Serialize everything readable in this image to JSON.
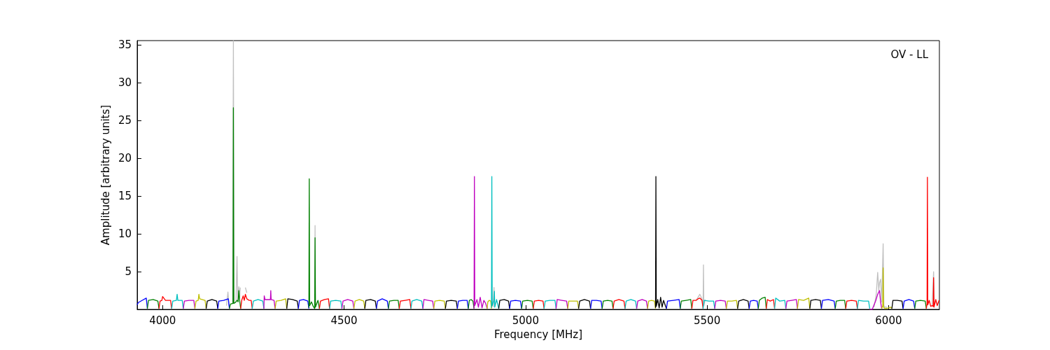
{
  "chart_data": {
    "type": "line",
    "xlabel": "Frequency [MHz]",
    "ylabel": "Amplitude [arbitrary units]",
    "annotations": [
      "OV - LL"
    ],
    "xlim": [
      3930,
      6140
    ],
    "xticks": [
      4000,
      4500,
      5000,
      5500,
      6000
    ],
    "ylim": [
      0,
      35.6
    ],
    "yticks": [
      5,
      10,
      15,
      20,
      25,
      30,
      35
    ],
    "marker": "none",
    "line_style": "solid",
    "series": [
      {
        "color": "#c0c0c0",
        "x": [
          4176,
          4180,
          4183,
          4186,
          4193,
          4195,
          4197,
          4202,
          4205,
          4207,
          4210,
          4212,
          4214,
          4222,
          4228,
          4232,
          4235,
          4410,
          4419,
          4420,
          4421,
          4430,
          4910,
          4913,
          4914,
          4916,
          4920,
          5470,
          5480,
          5485,
          5489,
          5490,
          5491,
          5495,
          5500,
          5960,
          5966,
          5970,
          5973,
          5975,
          5978,
          5981,
          5985,
          5987,
          5990,
          5995,
          6000,
          6110,
          6120,
          6124,
          6126
        ],
        "values": [
          0.5,
          2.3,
          0.5,
          null,
          0.8,
          35.6,
          0.8,
          1.0,
          7.0,
          1.2,
          3.0,
          1.4,
          2.9,
          null,
          2.9,
          2.2,
          null,
          null,
          0.3,
          11.1,
          0.3,
          null,
          0.3,
          2.9,
          0.3,
          null,
          null,
          1.2,
          2.0,
          1.5,
          0.5,
          5.9,
          0.5,
          1.3,
          null,
          0.3,
          2.0,
          4.9,
          2.5,
          3.5,
          4.0,
          1.0,
          8.7,
          0.5,
          0.3,
          0.3,
          null,
          null,
          0.5,
          5.0,
          0.5
        ]
      },
      {
        "color": "#0000ff",
        "x": [
          3930,
          3933,
          3944,
          3955,
          3958
        ],
        "values": [
          0.6,
          0.9,
          1.2,
          1.5,
          0.1
        ]
      },
      {
        "color": "#008000",
        "x": [
          3958,
          3961,
          3974,
          3987,
          3990
        ],
        "values": [
          0.1,
          1.2,
          1.3,
          1.1,
          0.1
        ]
      },
      {
        "color": "#ff0000",
        "x": [
          3990,
          3993,
          3998,
          4000,
          4008,
          4022,
          4025
        ],
        "values": [
          0.1,
          1.1,
          1.2,
          1.7,
          1.2,
          1.2,
          0.1
        ]
      },
      {
        "color": "#00bfbf",
        "x": [
          4025,
          4028,
          4038,
          4040,
          4042,
          4054,
          4057
        ],
        "values": [
          0.1,
          1.1,
          1.2,
          2.0,
          1.2,
          1.2,
          0.1
        ]
      },
      {
        "color": "#bf00bf",
        "x": [
          4057,
          4060,
          4073,
          4086,
          4089
        ],
        "values": [
          0.1,
          1.1,
          1.2,
          1.2,
          0.1
        ]
      },
      {
        "color": "#bfbf00",
        "x": [
          4089,
          4092,
          4098,
          4100,
          4102,
          4117,
          4120
        ],
        "values": [
          0.1,
          1.1,
          1.2,
          2.0,
          1.4,
          1.2,
          0.1
        ]
      },
      {
        "color": "#000000",
        "x": [
          4120,
          4123,
          4136,
          4149,
          4152
        ],
        "values": [
          0.1,
          1.1,
          1.3,
          1.1,
          0.1
        ]
      },
      {
        "color": "#0000ff",
        "x": [
          4152,
          4155,
          4168,
          4181,
          4184
        ],
        "values": [
          0.1,
          1.1,
          1.2,
          1.4,
          0.1
        ]
      },
      {
        "color": "#008000",
        "x": [
          4184,
          4187,
          4194,
          4195,
          4196,
          4200,
          4205,
          4208,
          4210,
          4212,
          4215
        ],
        "values": [
          0.1,
          0.7,
          0.8,
          26.7,
          0.8,
          0.9,
          1.2,
          1.0,
          2.5,
          1.3,
          0.1
        ]
      },
      {
        "color": "#ff0000",
        "x": [
          4215,
          4218,
          4222,
          4225,
          4228,
          4232,
          4238,
          4244,
          4247
        ],
        "values": [
          0.1,
          1.2,
          1.8,
          1.2,
          2.0,
          1.4,
          1.2,
          1.2,
          0.1
        ]
      },
      {
        "color": "#00bfbf",
        "x": [
          4247,
          4250,
          4263,
          4276,
          4279
        ],
        "values": [
          0.1,
          1.1,
          1.3,
          1.1,
          0.1
        ]
      },
      {
        "color": "#bf00bf",
        "x": [
          4279,
          4280,
          4282,
          4290,
          4297,
          4298,
          4299,
          4307,
          4310
        ],
        "values": [
          0.1,
          1.8,
          1.3,
          1.3,
          1.3,
          2.5,
          1.3,
          1.2,
          0.1
        ]
      },
      {
        "color": "#bfbf00",
        "x": [
          4310,
          4313,
          4326,
          4339,
          4342
        ],
        "values": [
          0.1,
          1.1,
          1.2,
          1.4,
          0.1
        ]
      },
      {
        "color": "#000000",
        "x": [
          4342,
          4345,
          4358,
          4371,
          4374
        ],
        "values": [
          0.1,
          1.4,
          1.3,
          1.1,
          0.1
        ]
      },
      {
        "color": "#0000ff",
        "x": [
          4374,
          4377,
          4388,
          4400,
          4403
        ],
        "values": [
          0.1,
          1.2,
          1.3,
          1.1,
          0.1
        ]
      },
      {
        "color": "#008000",
        "x": [
          4403,
          4404,
          4405,
          4410,
          4415,
          4419,
          4420,
          4421,
          4428,
          4432
        ],
        "values": [
          0.2,
          17.3,
          0.5,
          1.0,
          0.4,
          0.1,
          9.5,
          0.3,
          1.2,
          0.1
        ]
      },
      {
        "color": "#ff0000",
        "x": [
          4432,
          4435,
          4446,
          4457,
          4460
        ],
        "values": [
          0.1,
          1.1,
          1.3,
          1.4,
          0.1
        ]
      },
      {
        "color": "#00bfbf",
        "x": [
          4460,
          4463,
          4477,
          4491,
          4494
        ],
        "values": [
          0.1,
          1.1,
          1.2,
          1.1,
          0.1
        ]
      },
      {
        "color": "#bf00bf",
        "x": [
          4494,
          4497,
          4510,
          4524,
          4527
        ],
        "values": [
          0.1,
          1.1,
          1.3,
          1.1,
          0.1
        ]
      },
      {
        "color": "#bfbf00",
        "x": [
          4527,
          4530,
          4542,
          4554,
          4557
        ],
        "values": [
          0.1,
          1.1,
          1.3,
          1.1,
          0.1
        ]
      },
      {
        "color": "#000000",
        "x": [
          4557,
          4560,
          4573,
          4586,
          4589
        ],
        "values": [
          0.1,
          1.2,
          1.3,
          1.1,
          0.1
        ]
      },
      {
        "color": "#0000ff",
        "x": [
          4589,
          4592,
          4605,
          4619,
          4622
        ],
        "values": [
          0.1,
          1.1,
          1.4,
          1.1,
          0.1
        ]
      },
      {
        "color": "#008000",
        "x": [
          4622,
          4625,
          4637,
          4649,
          4652
        ],
        "values": [
          0.1,
          1.1,
          1.2,
          1.2,
          0.1
        ]
      },
      {
        "color": "#ff0000",
        "x": [
          4652,
          4655,
          4668,
          4681,
          4684
        ],
        "values": [
          0.1,
          1.1,
          1.2,
          1.3,
          0.1
        ]
      },
      {
        "color": "#00bfbf",
        "x": [
          4684,
          4687,
          4700,
          4714,
          4717
        ],
        "values": [
          0.1,
          1.1,
          1.3,
          1.1,
          0.1
        ]
      },
      {
        "color": "#bf00bf",
        "x": [
          4717,
          4720,
          4732,
          4744,
          4747
        ],
        "values": [
          0.1,
          1.3,
          1.2,
          1.1,
          0.1
        ]
      },
      {
        "color": "#bfbf00",
        "x": [
          4747,
          4750,
          4763,
          4776,
          4779
        ],
        "values": [
          0.1,
          1.1,
          1.2,
          1.1,
          0.1
        ]
      },
      {
        "color": "#000000",
        "x": [
          4779,
          4782,
          4795,
          4809,
          4812
        ],
        "values": [
          0.1,
          1.1,
          1.2,
          1.1,
          0.1
        ]
      },
      {
        "color": "#0000ff",
        "x": [
          4812,
          4815,
          4827,
          4839,
          4842
        ],
        "values": [
          0.1,
          1.1,
          1.2,
          1.2,
          0.1
        ]
      },
      {
        "color": "#008000",
        "x": [
          4842,
          4845,
          4850,
          4855,
          4858
        ],
        "values": [
          0.1,
          1.2,
          1.3,
          1.1,
          0.1
        ]
      },
      {
        "color": "#bf00bf",
        "x": [
          4858,
          4859,
          4860,
          4866,
          4870,
          4875,
          4880,
          4885,
          4890,
          4894
        ],
        "values": [
          0.1,
          17.6,
          0.5,
          1.3,
          0.3,
          1.6,
          0.2,
          1.2,
          0.8,
          0.1
        ]
      },
      {
        "color": "#bfbf00",
        "x": [
          4894,
          4896,
          4900,
          4904,
          4906
        ],
        "values": [
          0.1,
          1.0,
          1.2,
          1.1,
          0.1
        ]
      },
      {
        "color": "#00bfbf",
        "x": [
          4906,
          4907,
          4908,
          4913,
          4914,
          4915,
          4920,
          4926
        ],
        "values": [
          0.2,
          17.6,
          0.5,
          1.2,
          2.4,
          0.3,
          1.3,
          0.1
        ]
      },
      {
        "color": "#000000",
        "x": [
          4926,
          4929,
          4941,
          4953,
          4956
        ],
        "values": [
          0.1,
          1.2,
          1.3,
          1.1,
          0.1
        ]
      },
      {
        "color": "#0000ff",
        "x": [
          4956,
          4959,
          4972,
          4986,
          4989
        ],
        "values": [
          0.1,
          1.1,
          1.2,
          1.1,
          0.1
        ]
      },
      {
        "color": "#008000",
        "x": [
          4989,
          4992,
          5005,
          5018,
          5021
        ],
        "values": [
          0.1,
          1.1,
          1.2,
          1.1,
          0.1
        ]
      },
      {
        "color": "#ff0000",
        "x": [
          5021,
          5024,
          5036,
          5048,
          5051
        ],
        "values": [
          0.1,
          1.1,
          1.2,
          1.1,
          0.1
        ]
      },
      {
        "color": "#00bfbf",
        "x": [
          5051,
          5054,
          5067,
          5081,
          5084
        ],
        "values": [
          0.1,
          1.1,
          1.2,
          1.2,
          0.1
        ]
      },
      {
        "color": "#bf00bf",
        "x": [
          5084,
          5087,
          5100,
          5113,
          5116
        ],
        "values": [
          0.1,
          1.3,
          1.2,
          1.1,
          0.1
        ]
      },
      {
        "color": "#bfbf00",
        "x": [
          5116,
          5119,
          5131,
          5143,
          5146
        ],
        "values": [
          0.1,
          1.1,
          1.1,
          1.1,
          0.1
        ]
      },
      {
        "color": "#000000",
        "x": [
          5146,
          5149,
          5162,
          5176,
          5179
        ],
        "values": [
          0.1,
          1.1,
          1.3,
          1.1,
          0.1
        ]
      },
      {
        "color": "#0000ff",
        "x": [
          5179,
          5182,
          5195,
          5208,
          5211
        ],
        "values": [
          0.1,
          1.2,
          1.2,
          1.1,
          0.1
        ]
      },
      {
        "color": "#008000",
        "x": [
          5211,
          5214,
          5226,
          5238,
          5241
        ],
        "values": [
          0.1,
          1.1,
          1.2,
          1.1,
          0.1
        ]
      },
      {
        "color": "#ff0000",
        "x": [
          5241,
          5244,
          5257,
          5271,
          5274
        ],
        "values": [
          0.1,
          1.1,
          1.3,
          1.1,
          0.1
        ]
      },
      {
        "color": "#00bfbf",
        "x": [
          5274,
          5277,
          5290,
          5303,
          5306
        ],
        "values": [
          0.1,
          1.1,
          1.3,
          1.1,
          0.1
        ]
      },
      {
        "color": "#bf00bf",
        "x": [
          5306,
          5309,
          5321,
          5333,
          5336
        ],
        "values": [
          0.1,
          1.1,
          1.3,
          1.1,
          0.1
        ]
      },
      {
        "color": "#bfbf00",
        "x": [
          5336,
          5339,
          5347,
          5355,
          5358
        ],
        "values": [
          0.1,
          1.1,
          1.2,
          1.1,
          0.1
        ]
      },
      {
        "color": "#000000",
        "x": [
          5358,
          5359,
          5360,
          5364,
          5368,
          5372,
          5376,
          5380,
          5388
        ],
        "values": [
          0.2,
          17.6,
          0.4,
          1.3,
          0.2,
          1.6,
          0.3,
          1.2,
          0.1
        ]
      },
      {
        "color": "#0000ff",
        "x": [
          5388,
          5391,
          5407,
          5423,
          5426
        ],
        "values": [
          0.1,
          1.1,
          1.2,
          1.3,
          0.1
        ]
      },
      {
        "color": "#008000",
        "x": [
          5426,
          5429,
          5442,
          5455,
          5458
        ],
        "values": [
          0.1,
          1.1,
          1.2,
          1.3,
          0.1
        ]
      },
      {
        "color": "#ff0000",
        "x": [
          5458,
          5461,
          5470,
          5475,
          5480,
          5486,
          5489
        ],
        "values": [
          0.1,
          1.2,
          1.2,
          1.4,
          1.5,
          1.2,
          0.1
        ]
      },
      {
        "color": "#00bfbf",
        "x": [
          5489,
          5492,
          5505,
          5518,
          5521
        ],
        "values": [
          0.1,
          1.2,
          1.1,
          1.1,
          0.1
        ]
      },
      {
        "color": "#bf00bf",
        "x": [
          5521,
          5524,
          5537,
          5550,
          5553
        ],
        "values": [
          0.1,
          1.1,
          1.2,
          1.1,
          0.1
        ]
      },
      {
        "color": "#bfbf00",
        "x": [
          5553,
          5556,
          5568,
          5581,
          5584
        ],
        "values": [
          0.1,
          1.1,
          1.1,
          1.2,
          0.1
        ]
      },
      {
        "color": "#000000",
        "x": [
          5584,
          5587,
          5600,
          5613,
          5616
        ],
        "values": [
          0.1,
          1.1,
          1.3,
          1.1,
          0.1
        ]
      },
      {
        "color": "#0000ff",
        "x": [
          5616,
          5619,
          5628,
          5638,
          5641
        ],
        "values": [
          0.1,
          1.1,
          1.2,
          1.1,
          0.1
        ]
      },
      {
        "color": "#008000",
        "x": [
          5641,
          5644,
          5652,
          5660,
          5663
        ],
        "values": [
          0.1,
          1.2,
          1.5,
          1.6,
          0.1
        ]
      },
      {
        "color": "#ff0000",
        "x": [
          5663,
          5666,
          5674,
          5683,
          5686
        ],
        "values": [
          0.1,
          1.3,
          1.1,
          1.3,
          0.1
        ]
      },
      {
        "color": "#00bfbf",
        "x": [
          5686,
          5689,
          5700,
          5714,
          5717
        ],
        "values": [
          0.1,
          1.5,
          1.1,
          1.2,
          0.1
        ]
      },
      {
        "color": "#bf00bf",
        "x": [
          5717,
          5720,
          5733,
          5746,
          5749
        ],
        "values": [
          0.1,
          1.1,
          1.2,
          1.3,
          0.1
        ]
      },
      {
        "color": "#bfbf00",
        "x": [
          5749,
          5752,
          5766,
          5780,
          5783
        ],
        "values": [
          0.1,
          1.3,
          1.2,
          1.5,
          0.1
        ]
      },
      {
        "color": "#000000",
        "x": [
          5783,
          5786,
          5799,
          5812,
          5815
        ],
        "values": [
          0.1,
          1.2,
          1.3,
          1.2,
          0.1
        ]
      },
      {
        "color": "#0000ff",
        "x": [
          5815,
          5818,
          5834,
          5850,
          5853
        ],
        "values": [
          0.1,
          1.2,
          1.3,
          1.1,
          0.1
        ]
      },
      {
        "color": "#008000",
        "x": [
          5853,
          5856,
          5867,
          5879,
          5882
        ],
        "values": [
          0.1,
          1.1,
          1.2,
          1.2,
          0.1
        ]
      },
      {
        "color": "#ff0000",
        "x": [
          5882,
          5885,
          5898,
          5911,
          5914
        ],
        "values": [
          0.1,
          1.1,
          1.2,
          1.1,
          0.1
        ]
      },
      {
        "color": "#00bfbf",
        "x": [
          5914,
          5917,
          5931,
          5945,
          5948
        ],
        "values": [
          0.1,
          1.2,
          1.1,
          1.1,
          0.1
        ]
      },
      {
        "color": "#bf00bf",
        "x": [
          5948,
          5955,
          5965,
          5970,
          5975,
          5978,
          5981
        ],
        "values": [
          0.0,
          0.0,
          1.2,
          2.0,
          2.5,
          1.0,
          0.1
        ]
      },
      {
        "color": "#bfbf00",
        "x": [
          5981,
          5984,
          5985,
          5986,
          5990,
          6000,
          6006,
          6009
        ],
        "values": [
          0.1,
          0.5,
          5.5,
          0.3,
          0.1,
          0.2,
          0.3,
          0.1
        ]
      },
      {
        "color": "#000000",
        "x": [
          6009,
          6012,
          6024,
          6037,
          6040
        ],
        "values": [
          0.1,
          1.2,
          1.2,
          1.1,
          0.1
        ]
      },
      {
        "color": "#0000ff",
        "x": [
          6040,
          6043,
          6056,
          6069,
          6072
        ],
        "values": [
          0.1,
          1.1,
          1.3,
          1.1,
          0.1
        ]
      },
      {
        "color": "#008000",
        "x": [
          6072,
          6075,
          6088,
          6101,
          6104
        ],
        "values": [
          0.1,
          1.1,
          1.2,
          1.1,
          0.1
        ]
      },
      {
        "color": "#ff0000",
        "x": [
          6104,
          6106,
          6107,
          6108,
          6112,
          6116,
          6120,
          6123,
          6124,
          6125,
          6130,
          6134,
          6139
        ],
        "values": [
          0.1,
          0.8,
          17.5,
          0.6,
          1.2,
          0.4,
          0.5,
          0.4,
          4.2,
          0.3,
          1.3,
          0.5,
          1.2
        ]
      }
    ]
  }
}
